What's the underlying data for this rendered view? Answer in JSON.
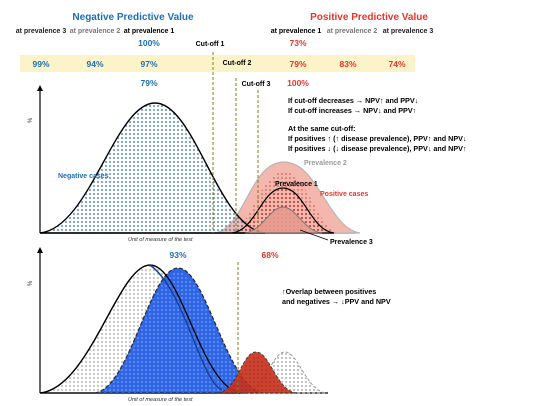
{
  "header": {
    "npv_title": "Negative Predictive Value",
    "ppv_title": "Positive Predictive Value",
    "npv_prev_3": "at prevalence 3",
    "npv_prev_2": "at prevalence 2",
    "npv_prev_1": "at prevalence 1",
    "ppv_prev_1": "at prevalence 1",
    "ppv_prev_2": "at prevalence 2",
    "ppv_prev_3": "at prevalence 3"
  },
  "band": {
    "npv_top": "100%",
    "npv_values": [
      "99%",
      "94%",
      "97%"
    ],
    "npv_bottom": "79%",
    "ppv_top": "73%",
    "ppv_values": [
      "79%",
      "83%",
      "74%"
    ],
    "ppv_bottom": "100%"
  },
  "cutoffs": {
    "c1": "Cut-off 1",
    "c2": "Cut-off 2",
    "c3": "Cut-off 3"
  },
  "notes": {
    "line1": "If cut-off decreases → NPV↑ and PPV↓",
    "line2": "If cut-off increases → NPV↓ and PPV↑",
    "line3": "At the same cut-off:",
    "line4": "If positives ↑ (↑ disease prevalence), PPV↑ and NPV↓",
    "line5": "If positives ↓ (↓ disease prevalence), PPV↓ and NPV↑"
  },
  "top_chart": {
    "y_label": "%",
    "x_label": "Unit of measure of the test",
    "negative_label": "Negative cases",
    "positive_label": "Positive cases",
    "prevalence_1": "Prevalence 1",
    "prevalence_2": "Prevalence 2",
    "prevalence_3": "Prevalence 3"
  },
  "bottom_chart": {
    "y_label": "%",
    "x_label": "Unit of measure of the test",
    "npv_value": "93%",
    "ppv_value": "68%",
    "note_line1": "↑Overlap between positives",
    "note_line2": "and negatives → ↓PPV and NPV"
  },
  "colors": {
    "npv_blue": "#1f6fb4",
    "ppv_red": "#e8352a",
    "band_yellow": "#fdf3c9",
    "cutoff_olive": "#8a7d1a",
    "negative_dots": "#2e6e9e",
    "positive_fill": "#f4b7ae",
    "positive_dark": "#a8231b",
    "blue_fill": "#2f66e8"
  }
}
